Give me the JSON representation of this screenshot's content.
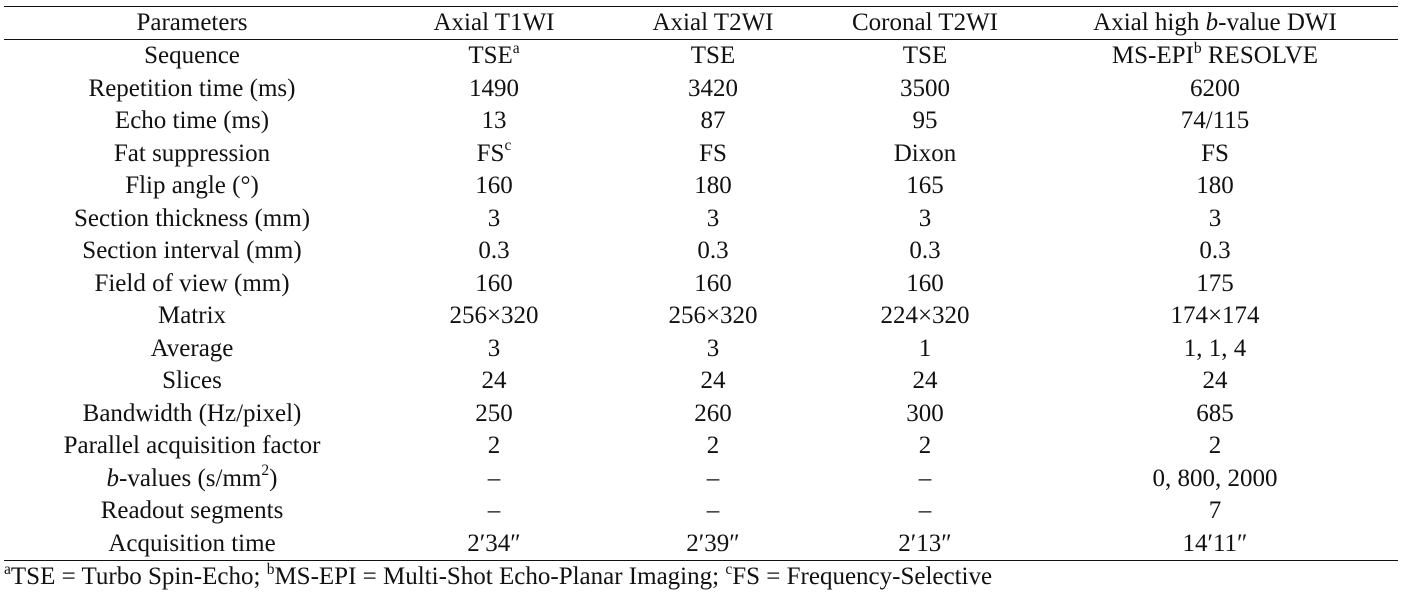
{
  "table": {
    "header": {
      "parameters": "Parameters",
      "axial_t1wi": "Axial T1WI",
      "axial_t2wi": "Axial T2WI",
      "coronal_t2wi": "Coronal T2WI",
      "dwi_prefix": "Axial high ",
      "dwi_b": "b",
      "dwi_suffix": "-value DWI"
    },
    "rows": {
      "sequence": {
        "label": "Sequence",
        "t1": "TSE",
        "t1_sup": "a",
        "t2": "TSE",
        "cor": "TSE",
        "dwi": "MS-EPI",
        "dwi_sup": "b",
        "dwi_tail": " RESOLVE"
      },
      "tr": {
        "label": "Repetition time (ms)",
        "t1": "1490",
        "t2": "3420",
        "cor": "3500",
        "dwi": "6200"
      },
      "te": {
        "label": "Echo time (ms)",
        "t1": "13",
        "t2": "87",
        "cor": "95",
        "dwi": "74/115"
      },
      "fat": {
        "label": "Fat suppression",
        "t1": "FS",
        "t1_sup": "c",
        "t2": "FS",
        "cor": "Dixon",
        "dwi": "FS"
      },
      "flip": {
        "label": "Flip angle (°)",
        "t1": "160",
        "t2": "180",
        "cor": "165",
        "dwi": "180"
      },
      "thick": {
        "label": "Section thickness (mm)",
        "t1": "3",
        "t2": "3",
        "cor": "3",
        "dwi": "3"
      },
      "interval": {
        "label": "Section interval (mm)",
        "t1": "0.3",
        "t2": "0.3",
        "cor": "0.3",
        "dwi": "0.3"
      },
      "fov": {
        "label": "Field of view (mm)",
        "t1": "160",
        "t2": "160",
        "cor": "160",
        "dwi": "175"
      },
      "matrix": {
        "label": "Matrix",
        "t1": "256×320",
        "t2": "256×320",
        "cor": "224×320",
        "dwi": "174×174"
      },
      "average": {
        "label": "Average",
        "t1": "3",
        "t2": "3",
        "cor": "1",
        "dwi": "1, 1, 4"
      },
      "slices": {
        "label": "Slices",
        "t1": "24",
        "t2": "24",
        "cor": "24",
        "dwi": "24"
      },
      "bandwidth": {
        "label": "Bandwidth (Hz/pixel)",
        "t1": "250",
        "t2": "260",
        "cor": "300",
        "dwi": "685"
      },
      "parallel": {
        "label": "Parallel acquisition factor",
        "t1": "2",
        "t2": "2",
        "cor": "2",
        "dwi": "2"
      },
      "bvalues": {
        "label_b": "b",
        "label_mid": "-values (s/mm",
        "label_sup": "2",
        "label_end": ")",
        "t1": "–",
        "t2": "–",
        "cor": "–",
        "dwi": "0, 800, 2000"
      },
      "readout": {
        "label": "Readout segments",
        "t1": "–",
        "t2": "–",
        "cor": "–",
        "dwi": "7"
      },
      "acq": {
        "label": "Acquisition time",
        "t1": "2′34″",
        "t2": "2′39″",
        "cor": "2′13″",
        "dwi": "14′11″"
      }
    }
  },
  "footnote": {
    "a_mark": "a",
    "a_text": "TSE = Turbo Spin-Echo; ",
    "b_mark": "b",
    "b_text": "MS-EPI = Multi-Shot Echo-Planar Imaging; ",
    "c_mark": "c",
    "c_text": "FS = Frequency-Selective"
  }
}
